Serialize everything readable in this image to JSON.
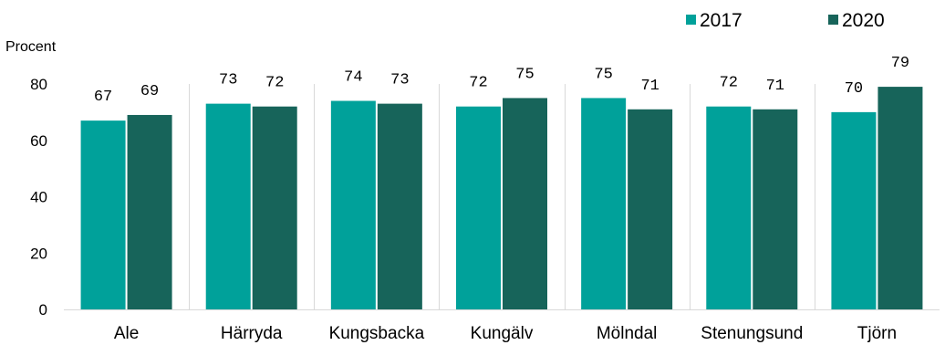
{
  "chart_data": {
    "type": "bar",
    "title": "",
    "xlabel": "",
    "ylabel": "Procent",
    "categories": [
      "Ale",
      "Härryda",
      "Kungsbacka",
      "Kungälv",
      "Mölndal",
      "Stenungsund",
      "Tjörn"
    ],
    "series": [
      {
        "name": "2017",
        "color": "#00a19a",
        "values": [
          67,
          73,
          74,
          72,
          75,
          72,
          70
        ]
      },
      {
        "name": "2020",
        "color": "#17645a",
        "values": [
          69,
          72,
          73,
          75,
          71,
          71,
          79
        ]
      }
    ],
    "ylim": [
      0,
      80
    ],
    "yticks": [
      "0",
      "20",
      "40",
      "60",
      "80"
    ],
    "grid": "vertical separators",
    "legend_position": "top-right"
  }
}
